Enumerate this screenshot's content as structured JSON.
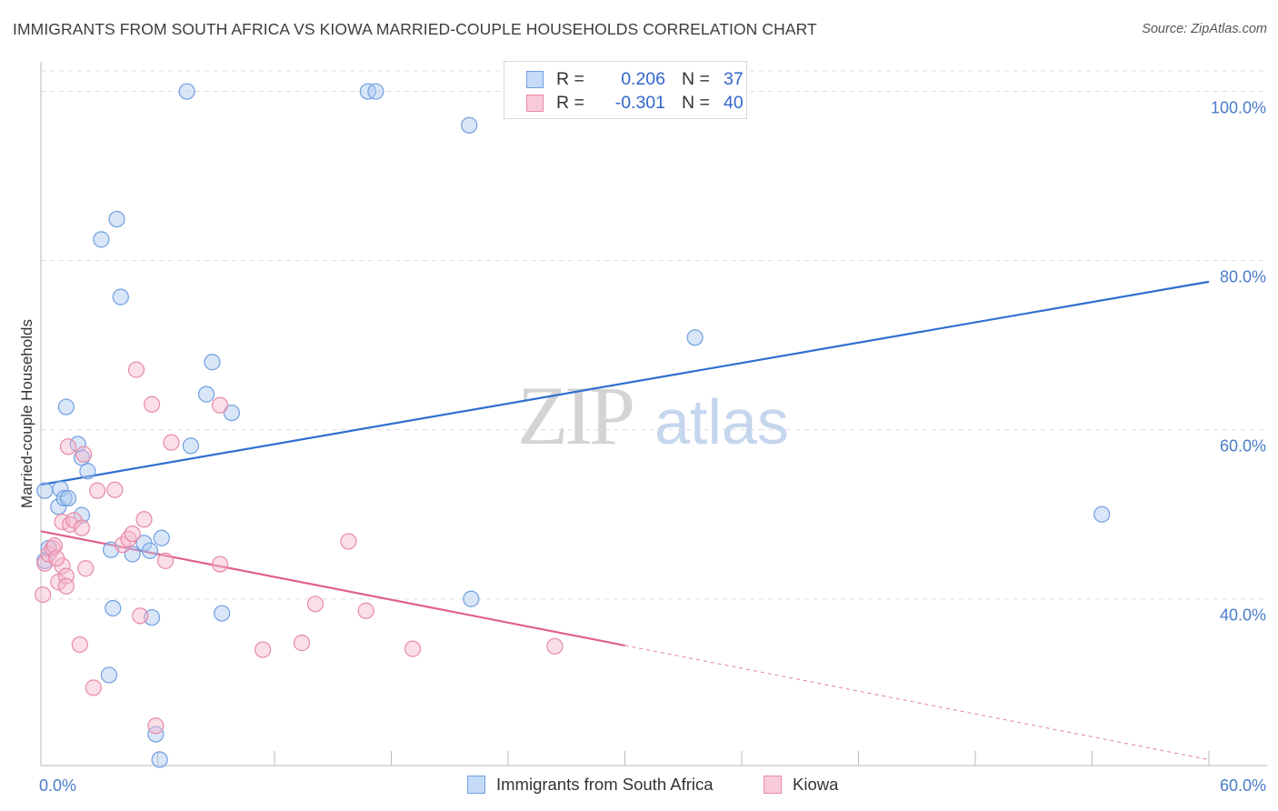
{
  "header": {
    "title": "IMMIGRANTS FROM SOUTH AFRICA VS KIOWA MARRIED-COUPLE HOUSEHOLDS CORRELATION CHART",
    "source": "Source: ZipAtlas.com"
  },
  "watermark": {
    "zip": "ZIP",
    "atlas": "atlas"
  },
  "legend": {
    "rows": [
      {
        "r_label": "R =",
        "r_value": "0.206",
        "n_label": "N =",
        "n_value": "37"
      },
      {
        "r_label": "R =",
        "r_value": "-0.301",
        "n_label": "N =",
        "n_value": "40"
      }
    ]
  },
  "bottom_legend": {
    "items": [
      {
        "label": "Immigrants from South Africa"
      },
      {
        "label": "Kiowa"
      }
    ]
  },
  "colors": {
    "blue_fill": "#aac8f0",
    "blue_stroke": "#6f9fe0",
    "blue_line": "#2f6fd0",
    "pink_fill": "#f5b8cc",
    "pink_stroke": "#e889a8",
    "pink_line": "#e0608e",
    "tick": "#4a7cc9",
    "grid": "#dddddd"
  },
  "chart_data": {
    "type": "scatter",
    "title": "IMMIGRANTS FROM SOUTH AFRICA VS KIOWA MARRIED-COUPLE HOUSEHOLDS CORRELATION CHART",
    "xlabel": "",
    "ylabel": "Married-couple Households",
    "xlim": [
      0,
      60
    ],
    "ylim": [
      20.3,
      103.5
    ],
    "x_ticks": [
      "0.0%",
      "60.0%"
    ],
    "y_ticks": [
      {
        "value": 40,
        "label": "40.0%"
      },
      {
        "value": 60,
        "label": "60.0%"
      },
      {
        "value": 80,
        "label": "80.0%"
      },
      {
        "value": 100,
        "label": "100.0%"
      }
    ],
    "grid": "horizontal dashed",
    "legend_position": "top-center",
    "series": [
      {
        "name": "Immigrants from South Africa",
        "color": "#6f9fe0",
        "trend": {
          "x": [
            0,
            60
          ],
          "y": [
            53.5,
            77.5
          ],
          "dashed_from": null
        },
        "points": [
          [
            0.2,
            52.8
          ],
          [
            1.0,
            53.0
          ],
          [
            0.9,
            50.9
          ],
          [
            1.2,
            51.9
          ],
          [
            1.4,
            51.9
          ],
          [
            2.1,
            49.9
          ],
          [
            0.4,
            46.0
          ],
          [
            0.2,
            44.5
          ],
          [
            2.1,
            56.7
          ],
          [
            2.4,
            55.1
          ],
          [
            1.9,
            58.3
          ],
          [
            1.3,
            62.7
          ],
          [
            3.6,
            45.8
          ],
          [
            4.7,
            45.3
          ],
          [
            5.3,
            46.6
          ],
          [
            5.6,
            45.7
          ],
          [
            6.2,
            47.2
          ],
          [
            7.7,
            58.1
          ],
          [
            8.5,
            64.2
          ],
          [
            9.8,
            62.0
          ],
          [
            8.8,
            68.0
          ],
          [
            4.1,
            75.7
          ],
          [
            3.1,
            82.5
          ],
          [
            3.9,
            84.9
          ],
          [
            7.5,
            100.0
          ],
          [
            16.8,
            100.0
          ],
          [
            17.2,
            100.0
          ],
          [
            22.0,
            96.0
          ],
          [
            33.6,
            70.9
          ],
          [
            22.1,
            40.0
          ],
          [
            54.5,
            50.0
          ],
          [
            3.7,
            38.9
          ],
          [
            5.7,
            37.8
          ],
          [
            9.3,
            38.3
          ],
          [
            3.5,
            31.0
          ],
          [
            5.9,
            24.0
          ],
          [
            6.1,
            21.0
          ]
        ]
      },
      {
        "name": "Kiowa",
        "color": "#e889a8",
        "trend": {
          "x": [
            0,
            60
          ],
          "y": [
            48.0,
            21.0
          ],
          "dashed_from": 30.0
        },
        "points": [
          [
            0.1,
            40.5
          ],
          [
            0.2,
            44.2
          ],
          [
            0.4,
            45.3
          ],
          [
            0.6,
            46.0
          ],
          [
            0.7,
            46.3
          ],
          [
            0.9,
            42.0
          ],
          [
            1.1,
            43.9
          ],
          [
            1.3,
            42.7
          ],
          [
            1.1,
            49.1
          ],
          [
            1.5,
            48.8
          ],
          [
            1.7,
            49.3
          ],
          [
            2.1,
            48.4
          ],
          [
            2.3,
            43.6
          ],
          [
            1.4,
            58.0
          ],
          [
            2.2,
            57.1
          ],
          [
            2.9,
            52.8
          ],
          [
            3.8,
            52.9
          ],
          [
            4.2,
            46.4
          ],
          [
            4.5,
            47.1
          ],
          [
            4.7,
            47.7
          ],
          [
            5.3,
            49.4
          ],
          [
            6.4,
            44.5
          ],
          [
            4.9,
            67.1
          ],
          [
            5.7,
            63.0
          ],
          [
            6.7,
            58.5
          ],
          [
            9.2,
            62.9
          ],
          [
            9.2,
            44.1
          ],
          [
            15.8,
            46.8
          ],
          [
            14.1,
            39.4
          ],
          [
            16.7,
            38.6
          ],
          [
            5.1,
            38.0
          ],
          [
            2.0,
            34.6
          ],
          [
            2.7,
            29.5
          ],
          [
            5.9,
            25.0
          ],
          [
            11.4,
            34.0
          ],
          [
            13.4,
            34.8
          ],
          [
            19.1,
            34.1
          ],
          [
            26.4,
            34.4
          ],
          [
            1.3,
            41.5
          ],
          [
            0.8,
            44.8
          ]
        ]
      }
    ]
  }
}
